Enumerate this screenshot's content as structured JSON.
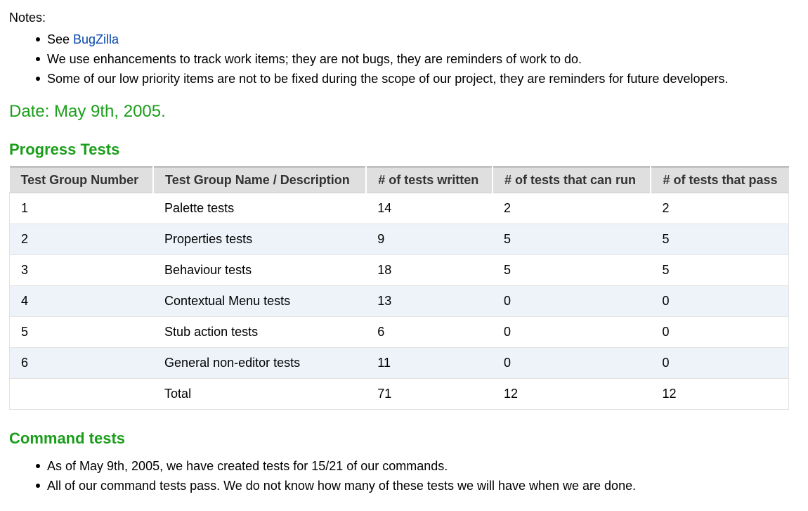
{
  "notes": {
    "label": "Notes:",
    "items": [
      {
        "prefix": "See ",
        "link": "BugZilla",
        "suffix": ""
      },
      {
        "prefix": "We use enhancements to track work items; they are not bugs, they are reminders of work to do.",
        "link": "",
        "suffix": ""
      },
      {
        "prefix": "Some of our low priority items are not to be fixed during the scope of our project, they are reminders for future developers.",
        "link": "",
        "suffix": ""
      }
    ]
  },
  "date_heading": "Date: May 9th, 2005.",
  "progress": {
    "heading": "Progress Tests",
    "columns": [
      "Test Group Number",
      "Test Group Name / Description",
      "# of tests written",
      "# of tests that can run",
      "# of tests that pass"
    ],
    "rows": [
      [
        "1",
        "Palette tests",
        "14",
        "2",
        "2"
      ],
      [
        "2",
        "Properties tests",
        "9",
        "5",
        "5"
      ],
      [
        "3",
        "Behaviour tests",
        "18",
        "5",
        "5"
      ],
      [
        "4",
        "Contextual Menu tests",
        "13",
        "0",
        "0"
      ],
      [
        "5",
        "Stub action tests",
        "6",
        "0",
        "0"
      ],
      [
        "6",
        "General non-editor tests",
        "11",
        "0",
        "0"
      ],
      [
        "",
        "Total",
        "71",
        "12",
        "12"
      ]
    ]
  },
  "command_tests": {
    "heading": "Command tests",
    "items": [
      "As of May 9th, 2005, we have created tests for 15/21 of our commands.",
      "All of our command tests pass. We do not know how many of these tests we will have when we are done."
    ]
  },
  "colors": {
    "heading_green": "#1a9e1a",
    "link_blue": "#0645ad",
    "header_bg": "#dfdfdf",
    "stripe_bg": "#edf3f9"
  }
}
